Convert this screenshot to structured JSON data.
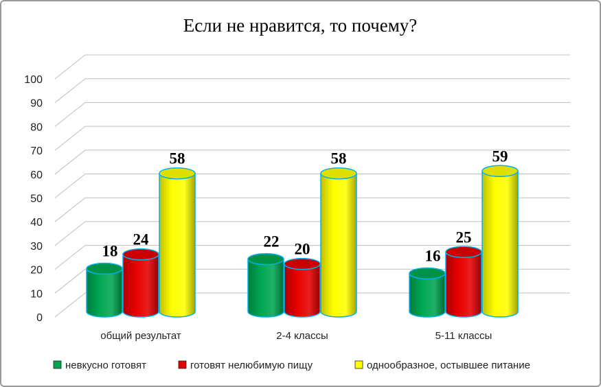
{
  "chart_data": {
    "type": "bar",
    "title": "Если не нравится,  то почему?",
    "categories": [
      "общий результат",
      "2-4 классы",
      "5-11 классы"
    ],
    "series": [
      {
        "name": "невкусно готовят",
        "values": [
          18,
          22,
          16
        ],
        "color": "#00a651"
      },
      {
        "name": "готовят нелюбимую пищу",
        "values": [
          24,
          20,
          25
        ],
        "color": "#e60000"
      },
      {
        "name": "однообразное, остывшее питание",
        "values": [
          58,
          58,
          59
        ],
        "color": "#ffff00"
      }
    ],
    "ylim": [
      0,
      100
    ],
    "yticks": [
      0,
      10,
      20,
      30,
      40,
      50,
      60,
      70,
      80,
      90,
      100
    ],
    "grid": true,
    "legend_position": "bottom",
    "bar_outline_color": "#00b0f0"
  }
}
